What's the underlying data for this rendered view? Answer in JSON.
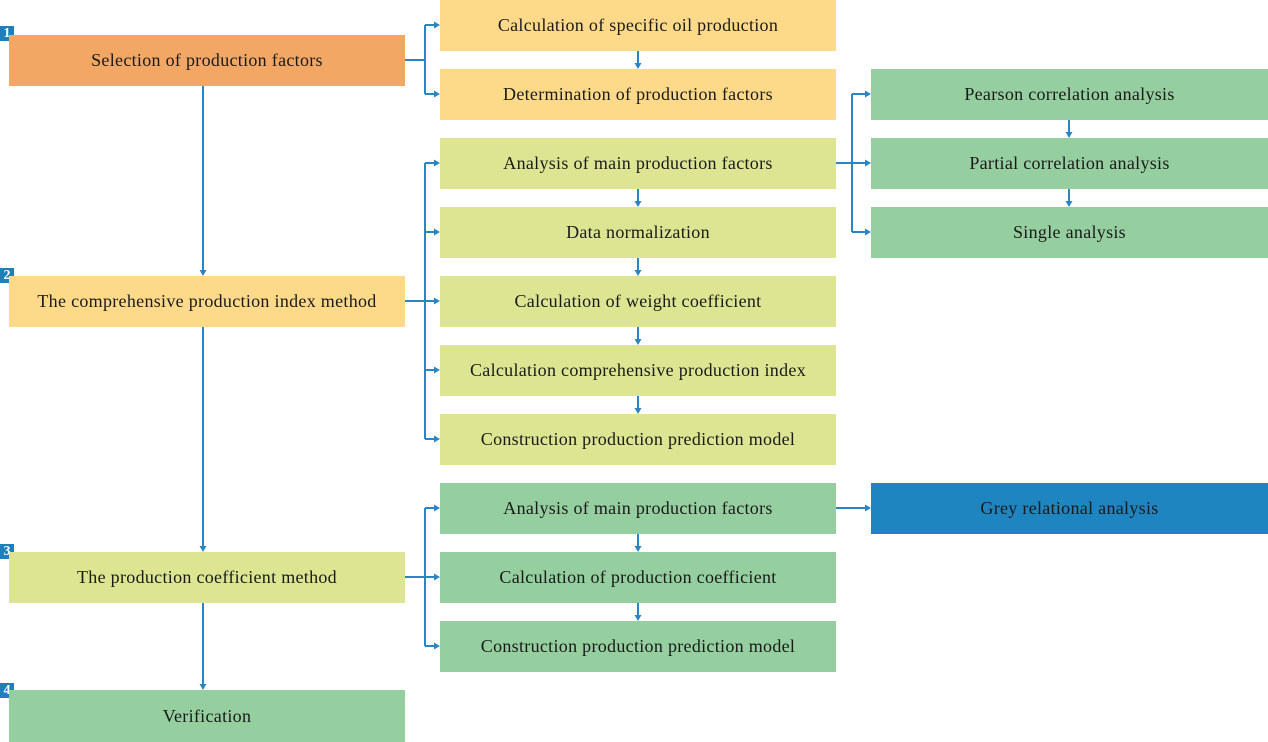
{
  "colors": {
    "orange": "#f2a765",
    "yellow": "#fdd98a",
    "light_green": "#dde592",
    "green": "#95ce9f",
    "blue": "#1e85c0",
    "connector": "#2a85c0"
  },
  "steps": [
    {
      "number": "1",
      "label": "Selection of production factors"
    },
    {
      "number": "2",
      "label": "The comprehensive production index method"
    },
    {
      "number": "3",
      "label": "The production coefficient method"
    },
    {
      "number": "4",
      "label": "Verification"
    }
  ],
  "step1_sub": [
    "Calculation of specific oil production",
    "Determination of production factors"
  ],
  "step2_sub": [
    "Analysis of main production factors",
    "Data normalization",
    "Calculation of weight coefficient",
    "Calculation comprehensive production index",
    "Construction production prediction model"
  ],
  "step2_analysis": [
    "Pearson correlation analysis",
    "Partial correlation analysis",
    "Single analysis"
  ],
  "step3_sub": [
    "Analysis of main production factors",
    "Calculation of production coefficient",
    "Construction production prediction model"
  ],
  "step3_analysis": [
    "Grey relational analysis"
  ]
}
